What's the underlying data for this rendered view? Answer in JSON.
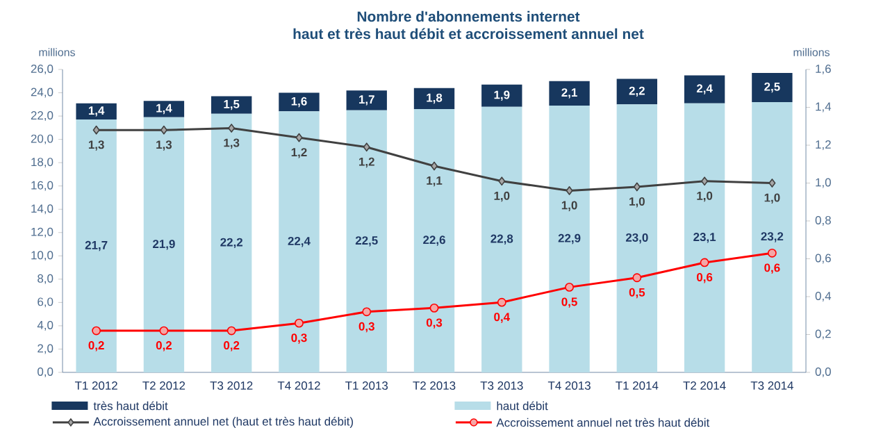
{
  "chart_data": {
    "type": "bar",
    "title": "Nombre d'abonnements internet",
    "subtitle": "haut et très haut débit et accroissement annuel net",
    "ylabel": "millions",
    "y2label": "millions",
    "categories": [
      "T1 2012",
      "T2 2012",
      "T3 2012",
      "T4 2012",
      "T1 2013",
      "T2 2013",
      "T3 2013",
      "T4 2013",
      "T1 2014",
      "T2 2014",
      "T3 2014"
    ],
    "stacked": true,
    "legend": "bottom",
    "series": [
      {
        "name": "haut débit",
        "color": "#b7dde8",
        "values": [
          21.7,
          21.9,
          22.2,
          22.4,
          22.5,
          22.6,
          22.8,
          22.9,
          23.0,
          23.1,
          23.2
        ],
        "value_labels": [
          "21,7",
          "21,9",
          "22,2",
          "22,4",
          "22,5",
          "22,6",
          "22,8",
          "22,9",
          "23,0",
          "23,1",
          "23,2"
        ]
      },
      {
        "name": "très haut débit",
        "color": "#17375e",
        "values": [
          1.4,
          1.4,
          1.5,
          1.6,
          1.7,
          1.8,
          1.9,
          2.1,
          2.2,
          2.4,
          2.5
        ],
        "value_labels": [
          "1,4",
          "1,4",
          "1,5",
          "1,6",
          "1,7",
          "1,8",
          "1,9",
          "2,1",
          "2,2",
          "2,4",
          "2,5"
        ]
      },
      {
        "name": "Accroissement annuel net (haut et très haut débit)",
        "type": "line",
        "axis": "y2",
        "color": "#404040",
        "marker": "diamond",
        "values": [
          1.28,
          1.28,
          1.29,
          1.24,
          1.19,
          1.09,
          1.01,
          0.96,
          0.98,
          1.01,
          1.0
        ],
        "value_labels": [
          "1,3",
          "1,3",
          "1,3",
          "1,2",
          "1,2",
          "1,1",
          "1,0",
          "1,0",
          "1,0",
          "1,0",
          "1,0"
        ]
      },
      {
        "name": "Accroissement annuel net très haut débit",
        "type": "line",
        "axis": "y2",
        "color": "#ff0000",
        "marker": "circle",
        "values": [
          0.22,
          0.22,
          0.22,
          0.26,
          0.32,
          0.34,
          0.37,
          0.45,
          0.5,
          0.58,
          0.63
        ],
        "value_labels": [
          "0,2",
          "0,2",
          "0,2",
          "0,3",
          "0,3",
          "0,3",
          "0,4",
          "0,5",
          "0,5",
          "0,6",
          "0,6"
        ]
      }
    ],
    "ylim": [
      0,
      26
    ],
    "yticks": [
      {
        "value": 0,
        "label": "0,0"
      },
      {
        "value": 2,
        "label": "2,0"
      },
      {
        "value": 4,
        "label": "4,0"
      },
      {
        "value": 6,
        "label": "6,0"
      },
      {
        "value": 8,
        "label": "8,0"
      },
      {
        "value": 10,
        "label": "10,0"
      },
      {
        "value": 12,
        "label": "12,0"
      },
      {
        "value": 14,
        "label": "14,0"
      },
      {
        "value": 16,
        "label": "16,0"
      },
      {
        "value": 18,
        "label": "18,0"
      },
      {
        "value": 20,
        "label": "20,0"
      },
      {
        "value": 22,
        "label": "22,0"
      },
      {
        "value": 24,
        "label": "24,0"
      },
      {
        "value": 26,
        "label": "26,0"
      }
    ],
    "y2lim": [
      0,
      1.6
    ],
    "y2ticks": [
      {
        "value": 0,
        "label": "0,0"
      },
      {
        "value": 0.2,
        "label": "0,2"
      },
      {
        "value": 0.4,
        "label": "0,4"
      },
      {
        "value": 0.6,
        "label": "0,6"
      },
      {
        "value": 0.8,
        "label": "0,8"
      },
      {
        "value": 1.0,
        "label": "1,0"
      },
      {
        "value": 1.2,
        "label": "1,2"
      },
      {
        "value": 1.4,
        "label": "1,4"
      },
      {
        "value": 1.6,
        "label": "1,6"
      }
    ]
  }
}
